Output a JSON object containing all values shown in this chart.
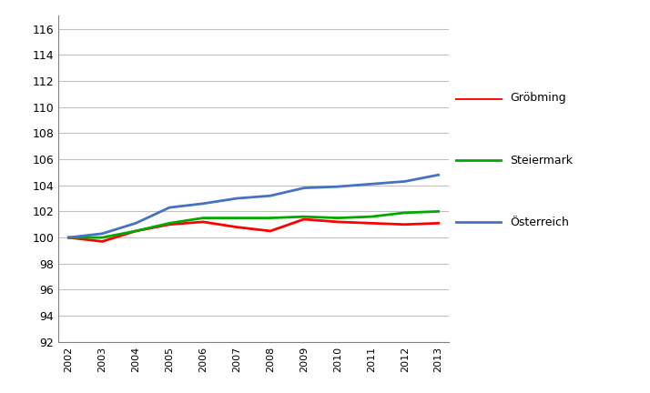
{
  "years": [
    2002,
    2003,
    2004,
    2005,
    2006,
    2007,
    2008,
    2009,
    2010,
    2011,
    2012,
    2013
  ],
  "groebming": [
    100.0,
    99.7,
    100.5,
    101.0,
    101.2,
    100.8,
    100.5,
    101.4,
    101.2,
    101.1,
    101.0,
    101.1
  ],
  "steiermark": [
    100.0,
    100.0,
    100.5,
    101.1,
    101.5,
    101.5,
    101.5,
    101.6,
    101.5,
    101.6,
    101.9,
    102.0
  ],
  "oesterreich": [
    100.0,
    100.3,
    101.1,
    102.3,
    102.6,
    103.0,
    103.2,
    103.8,
    103.9,
    104.1,
    104.3,
    104.8
  ],
  "colors": {
    "groebming": "#ff0000",
    "steiermark": "#00aa00",
    "oesterreich": "#4472c4"
  },
  "legend_labels": [
    "Gröbming",
    "Steiermark",
    "Österreich"
  ],
  "ylim": [
    92,
    117
  ],
  "yticks": [
    92,
    94,
    96,
    98,
    100,
    102,
    104,
    106,
    108,
    110,
    112,
    114,
    116
  ],
  "xlim": [
    2002,
    2013
  ],
  "xticks": [
    2002,
    2003,
    2004,
    2005,
    2006,
    2007,
    2008,
    2009,
    2010,
    2011,
    2012,
    2013
  ],
  "line_width": 2.0,
  "background_color": "#ffffff",
  "grid_color": "#c0c0c0",
  "axis_color": "#808080"
}
